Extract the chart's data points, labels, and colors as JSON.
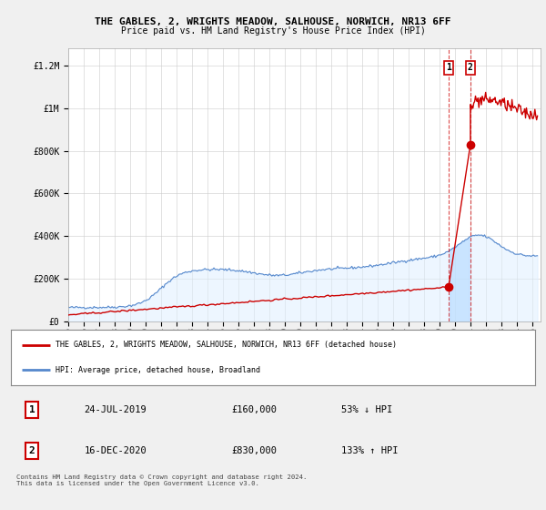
{
  "title": "THE GABLES, 2, WRIGHTS MEADOW, SALHOUSE, NORWICH, NR13 6FF",
  "subtitle": "Price paid vs. HM Land Registry's House Price Index (HPI)",
  "background_color": "#f0f0f0",
  "plot_bg_color": "#ffffff",
  "ylabel_ticks": [
    "£0",
    "£200K",
    "£400K",
    "£600K",
    "£800K",
    "£1M",
    "£1.2M"
  ],
  "ytick_values": [
    0,
    200000,
    400000,
    600000,
    800000,
    1000000,
    1200000
  ],
  "ylim": [
    0,
    1280000
  ],
  "xlim_start": 1995.0,
  "xlim_end": 2025.5,
  "legend_line1": "THE GABLES, 2, WRIGHTS MEADOW, SALHOUSE, NORWICH, NR13 6FF (detached house)",
  "legend_line2": "HPI: Average price, detached house, Broadland",
  "sale1_label": "1",
  "sale1_date": "24-JUL-2019",
  "sale1_price": "£160,000",
  "sale1_hpi": "53% ↓ HPI",
  "sale2_label": "2",
  "sale2_date": "16-DEC-2020",
  "sale2_price": "£830,000",
  "sale2_hpi": "133% ↑ HPI",
  "footnote": "Contains HM Land Registry data © Crown copyright and database right 2024.\nThis data is licensed under the Open Government Licence v3.0.",
  "hpi_color": "#5588cc",
  "hpi_fill_color": "#ddeeff",
  "price_color": "#cc0000",
  "sale1_x": 2019.56,
  "sale1_y": 160000,
  "sale2_x": 2020.97,
  "sale2_y": 830000,
  "xtick_years": [
    1995,
    1996,
    1997,
    1998,
    1999,
    2000,
    2001,
    2002,
    2003,
    2004,
    2005,
    2006,
    2007,
    2008,
    2009,
    2010,
    2011,
    2012,
    2013,
    2014,
    2015,
    2016,
    2017,
    2018,
    2019,
    2020,
    2021,
    2022,
    2023,
    2024,
    2025
  ]
}
